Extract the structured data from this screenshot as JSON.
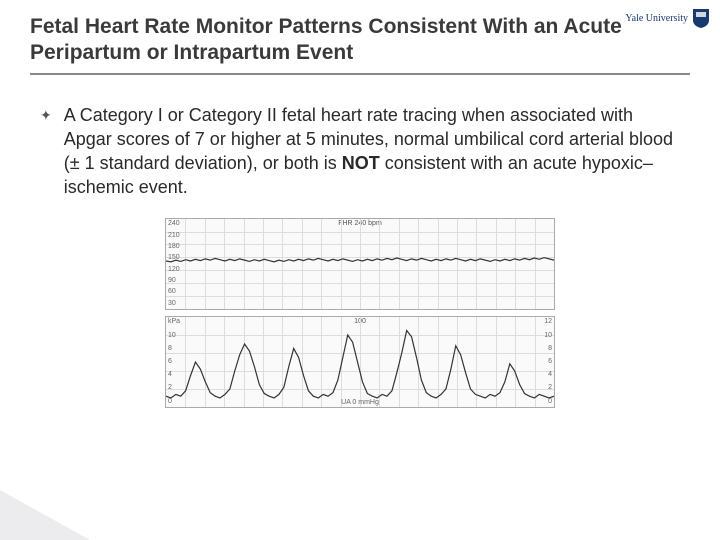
{
  "logo": {
    "text": "Yale University",
    "shield_bg": "#1a3a6e",
    "shield_accent": "#ffffff"
  },
  "title": "Fetal Heart Rate Monitor Patterns Consistent With an Acute Peripartum or Intrapartum Event",
  "bullet": {
    "marker": "✦",
    "text_pre": "A Category I or Category II fetal heart rate tracing when associated with Apgar scores of 7 or higher at 5 minutes, normal umbilical cord arterial blood (± 1 standard deviation), or both is ",
    "not_word": "NOT",
    "text_post": " consistent with an acute hypoxic–ischemic event."
  },
  "fhr_chart": {
    "title": "FHR 240 bpm",
    "y_labels": [
      "240",
      "210",
      "180",
      "150",
      "120",
      "90",
      "60",
      "30"
    ],
    "ylim": [
      30,
      240
    ],
    "grid_rows": 7,
    "grid_cols": 20,
    "trace_color": "#333333",
    "trace_width": 1.2,
    "background": "#fafafa",
    "grid_color": "#dddddd",
    "data": [
      142,
      140,
      144,
      141,
      145,
      142,
      146,
      143,
      147,
      144,
      148,
      145,
      142,
      146,
      143,
      147,
      144,
      141,
      145,
      142,
      146,
      143,
      140,
      144,
      141,
      145,
      142,
      146,
      143,
      147,
      144,
      148,
      145,
      142,
      146,
      143,
      147,
      144,
      141,
      145,
      142,
      146,
      143,
      147,
      144,
      148,
      145,
      149,
      146,
      143,
      147,
      144,
      148,
      145,
      142,
      146,
      143,
      147,
      144,
      148,
      145,
      142,
      146,
      143,
      147,
      144,
      141,
      145,
      142,
      146,
      143,
      147,
      144,
      148,
      145,
      149,
      146,
      150,
      147,
      144
    ]
  },
  "toco_chart": {
    "title": "100",
    "y_labels_left": [
      "kPa",
      "10",
      "8",
      "6",
      "4",
      "2",
      "0"
    ],
    "y_labels_right": [
      "12",
      "10",
      "8",
      "6",
      "4",
      "2",
      "0"
    ],
    "x_label": "UA 0 mmHg",
    "ylim": [
      0,
      100
    ],
    "grid_rows": 5,
    "grid_cols": 20,
    "trace_color": "#333333",
    "trace_width": 1.2,
    "background": "#fafafa",
    "grid_color": "#dddddd",
    "data": [
      12,
      10,
      14,
      12,
      18,
      35,
      50,
      42,
      28,
      16,
      12,
      10,
      14,
      20,
      40,
      58,
      70,
      62,
      45,
      25,
      15,
      12,
      10,
      14,
      22,
      45,
      65,
      55,
      35,
      18,
      12,
      10,
      14,
      12,
      16,
      30,
      55,
      80,
      72,
      50,
      28,
      15,
      12,
      10,
      14,
      12,
      18,
      38,
      60,
      85,
      78,
      55,
      30,
      16,
      12,
      10,
      14,
      20,
      42,
      68,
      58,
      38,
      20,
      14,
      12,
      10,
      14,
      12,
      16,
      28,
      48,
      40,
      25,
      15,
      12,
      10,
      14,
      12,
      10,
      12
    ]
  }
}
